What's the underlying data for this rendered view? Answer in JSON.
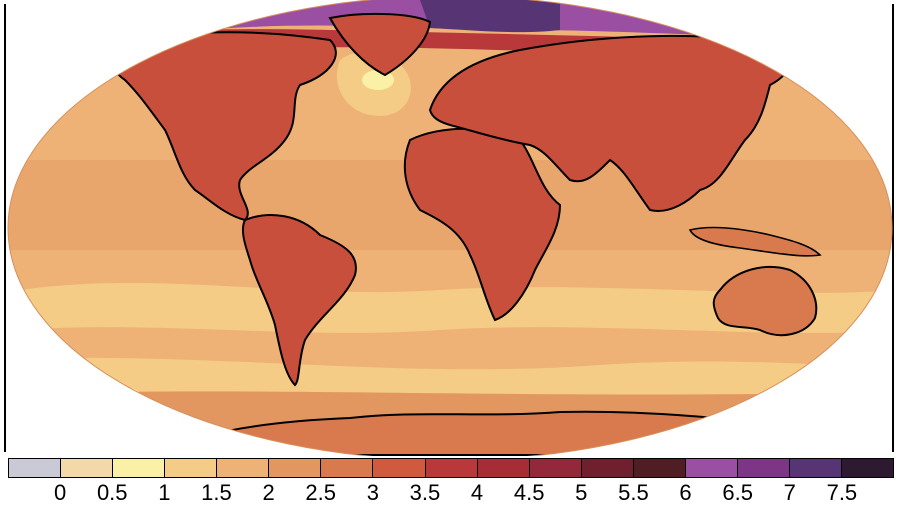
{
  "colorbar": {
    "colors": [
      "#c9cad6",
      "#f3d8a9",
      "#fbf1a6",
      "#f5cc86",
      "#eeb276",
      "#e29761",
      "#d97a4e",
      "#cf5a3e",
      "#b9383a",
      "#a62d36",
      "#93283a",
      "#6f1f2d",
      "#4f1d23",
      "#9a4fa3",
      "#7d3686",
      "#573575",
      "#2d1a31"
    ],
    "labels": [
      "0",
      "0.5",
      "1",
      "1.5",
      "2",
      "2.5",
      "3",
      "3.5",
      "4",
      "4.5",
      "5",
      "5.5",
      "6",
      "6.5",
      "7",
      "7.5"
    ]
  },
  "map": {
    "ocean_color": "#eeb276",
    "land_color": "#d97a4e",
    "arctic_color": "#9a4fa3",
    "coastline_color": "#000000"
  }
}
